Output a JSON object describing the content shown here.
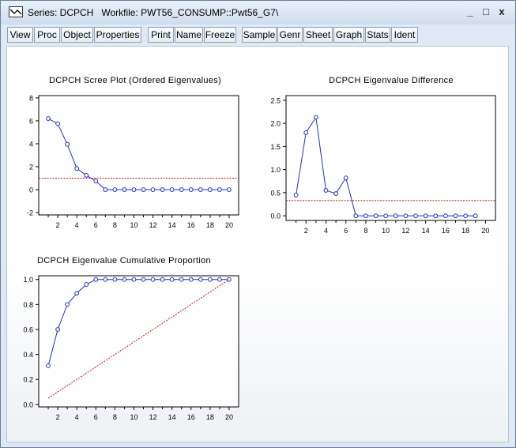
{
  "window": {
    "title": "Series: DCPCH   Workfile: PWT56_CONSUMP::Pwt56_G7\\",
    "minimize": "_",
    "maximize": "□",
    "close": "x"
  },
  "toolbar": [
    "View",
    "Proc",
    "Object",
    "Properties",
    "Print",
    "Name",
    "Freeze",
    "Sample",
    "Genr",
    "Sheet",
    "Graph",
    "Stats",
    "Ident"
  ],
  "colors": {
    "line": "#1f2fc8",
    "reference": "#cc1111"
  },
  "chart_data": [
    {
      "type": "line",
      "title": "DCPCH Scree Plot (Ordered Eigenvalues)",
      "x": [
        1,
        2,
        3,
        4,
        5,
        6,
        7,
        8,
        9,
        10,
        11,
        12,
        13,
        14,
        15,
        16,
        17,
        18,
        19,
        20
      ],
      "series": [
        {
          "values": [
            6.2,
            5.75,
            3.95,
            1.85,
            1.25,
            0.75,
            0,
            0,
            0,
            0,
            0,
            0,
            0,
            0,
            0,
            0,
            0,
            0,
            0,
            0
          ],
          "markers": true
        }
      ],
      "reference_line": 1,
      "xticks": [
        2,
        4,
        6,
        8,
        10,
        12,
        14,
        16,
        18,
        20
      ],
      "yticks": [
        -2,
        0,
        2,
        4,
        6,
        8
      ],
      "xlim": [
        0,
        21
      ],
      "ylim": [
        -2.2,
        8.2
      ]
    },
    {
      "type": "line",
      "title": "DCPCH Eigenvalue Difference",
      "x": [
        1,
        2,
        3,
        4,
        5,
        6,
        7,
        8,
        9,
        10,
        11,
        12,
        13,
        14,
        15,
        16,
        17,
        18,
        19
      ],
      "series": [
        {
          "values": [
            0.45,
            1.8,
            2.13,
            0.55,
            0.48,
            0.82,
            0,
            0,
            0,
            0,
            0,
            0,
            0,
            0,
            0,
            0,
            0,
            0,
            0
          ],
          "markers": true
        }
      ],
      "reference_line": 0.33,
      "xticks": [
        2,
        4,
        6,
        8,
        10,
        12,
        14,
        16,
        18,
        20
      ],
      "yticks": [
        0.0,
        0.5,
        1.0,
        1.5,
        2.0,
        2.5
      ],
      "ytick_labels": [
        "0.0",
        "0.5",
        "1.0",
        "1.5",
        "2.0",
        "2.5"
      ],
      "xlim": [
        0,
        21
      ],
      "ylim": [
        -0.1,
        2.6
      ]
    },
    {
      "type": "line",
      "title": "DCPCH Eigenvalue Cumulative Proportion",
      "x": [
        1,
        2,
        3,
        4,
        5,
        6,
        7,
        8,
        9,
        10,
        11,
        12,
        13,
        14,
        15,
        16,
        17,
        18,
        19,
        20
      ],
      "series": [
        {
          "values": [
            0.31,
            0.6,
            0.8,
            0.89,
            0.96,
            1,
            1,
            1,
            1,
            1,
            1,
            1,
            1,
            1,
            1,
            1,
            1,
            1,
            1,
            1
          ],
          "markers": true
        },
        {
          "values": [
            0.05,
            0.1,
            0.15,
            0.2,
            0.25,
            0.3,
            0.35,
            0.4,
            0.45,
            0.5,
            0.55,
            0.6,
            0.65,
            0.7,
            0.75,
            0.8,
            0.85,
            0.9,
            0.95,
            1.0
          ],
          "markers": false,
          "dashed": true
        }
      ],
      "xticks": [
        2,
        4,
        6,
        8,
        10,
        12,
        14,
        16,
        18,
        20
      ],
      "yticks": [
        0.0,
        0.2,
        0.4,
        0.6,
        0.8,
        1.0
      ],
      "ytick_labels": [
        "0.0",
        "0.2",
        "0.4",
        "0.6",
        "0.8",
        "1.0"
      ],
      "xlim": [
        0,
        21
      ],
      "ylim": [
        -0.02,
        1.03
      ]
    }
  ]
}
